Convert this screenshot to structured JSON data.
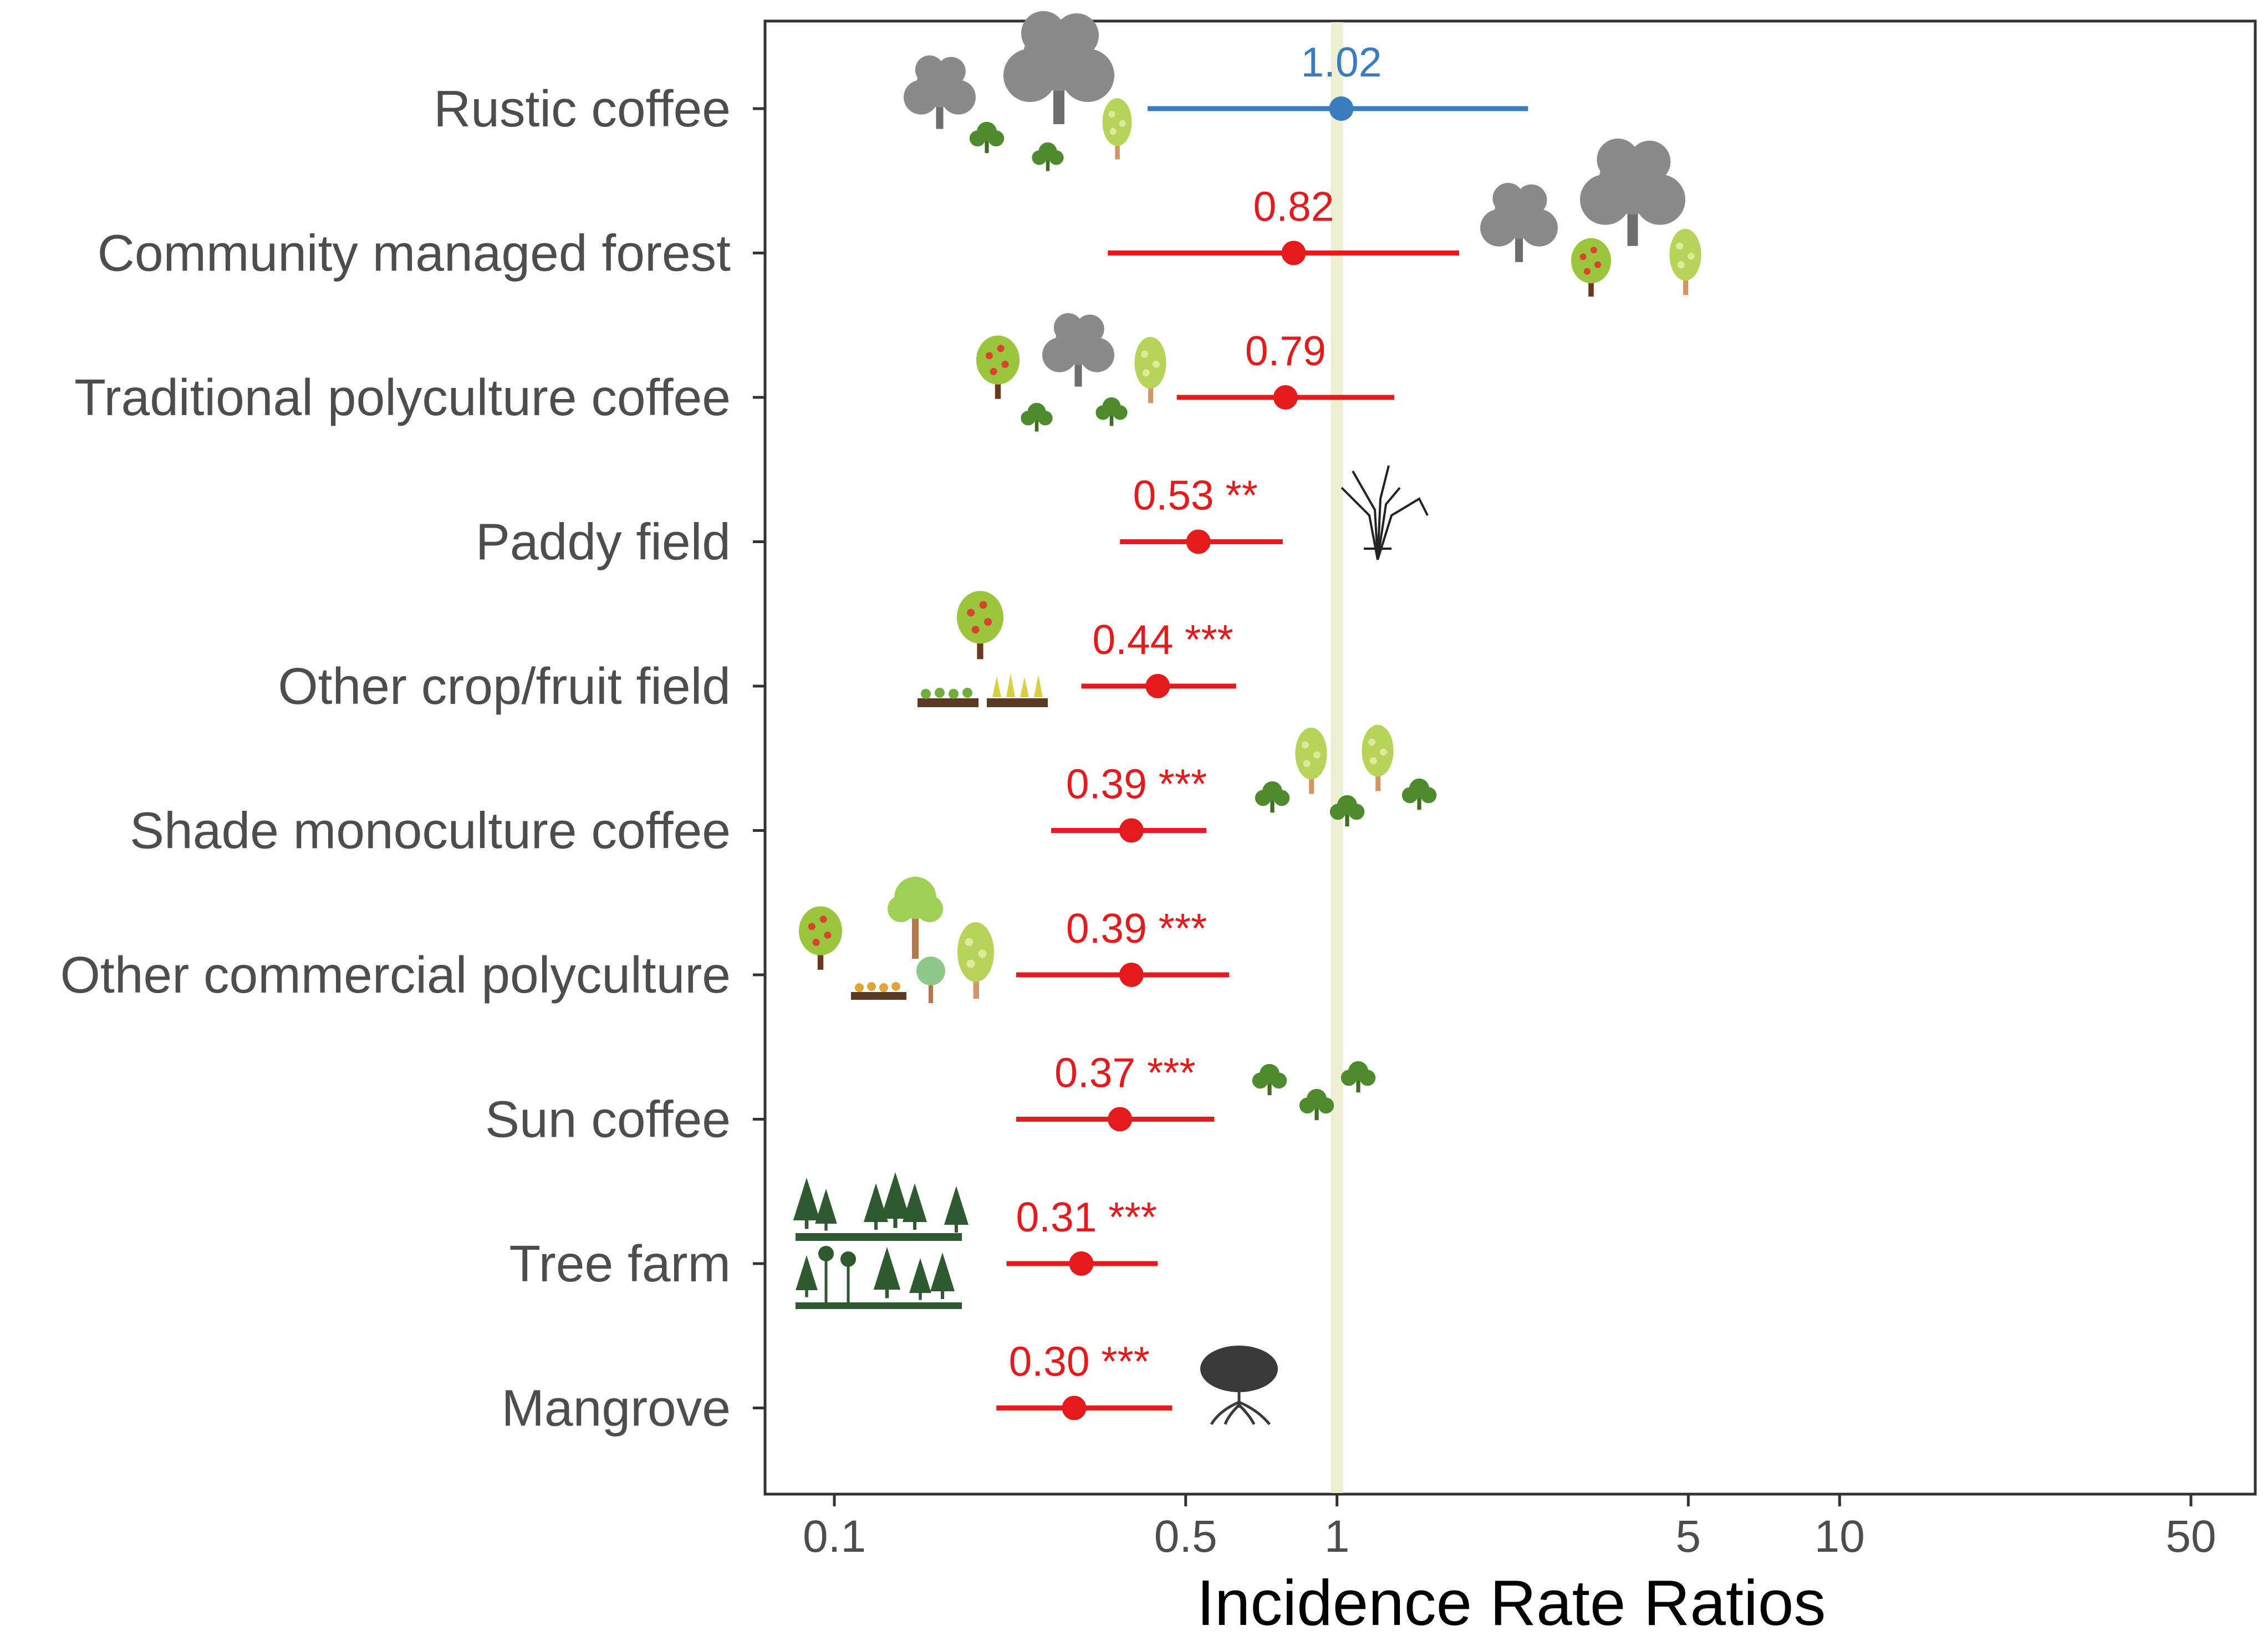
{
  "chart_data": {
    "type": "forest",
    "title": "",
    "xlabel": "Incidence Rate Ratios",
    "ylabel": "",
    "xscale": "log",
    "xlim": [
      0.08,
      60
    ],
    "xticks": [
      0.1,
      0.5,
      1,
      5,
      10,
      50
    ],
    "xtick_labels": [
      "0.1",
      "0.5",
      "1",
      "5",
      "10",
      "50"
    ],
    "reference_line": 1,
    "reference_color": "#eeeed2",
    "colors": {
      "positive": "#3a7dbf",
      "negative": "#e41a1c"
    },
    "categories": [
      "Rustic coffee",
      "Community managed forest",
      "Traditional polyculture coffee",
      "Paddy field",
      "Other crop/fruit field",
      "Shade monoculture coffee",
      "Other commercial polyculture",
      "Sun coffee",
      "Tree farm",
      "Mangrove"
    ],
    "estimates": [
      1.02,
      0.82,
      0.79,
      0.53,
      0.44,
      0.39,
      0.39,
      0.37,
      0.31,
      0.3
    ],
    "ci_low": [
      0.42,
      0.35,
      0.48,
      0.37,
      0.31,
      0.27,
      0.23,
      0.23,
      0.22,
      0.21
    ],
    "ci_high": [
      2.4,
      1.75,
      1.3,
      0.78,
      0.63,
      0.55,
      0.61,
      0.57,
      0.44,
      0.47
    ],
    "labels": [
      "1.02",
      "0.82",
      "0.79",
      "0.53 **",
      "0.44 ***",
      "0.39 ***",
      "0.39 ***",
      "0.37 ***",
      "0.31 ***",
      "0.30 ***"
    ],
    "icons": [
      "broadleaf-trees-shrubs-icon",
      "broadleaf-trees-fruit-tree-icon",
      "fruit-trees-shrubs-icon",
      "rice-plant-icon",
      "fruit-tree-crop-rows-icon",
      "shade-trees-shrubs-icon",
      "fruit-trees-crop-row-icon",
      "shrubs-icon",
      "conifer-plantation-icon",
      "mangrove-tree-icon"
    ]
  }
}
